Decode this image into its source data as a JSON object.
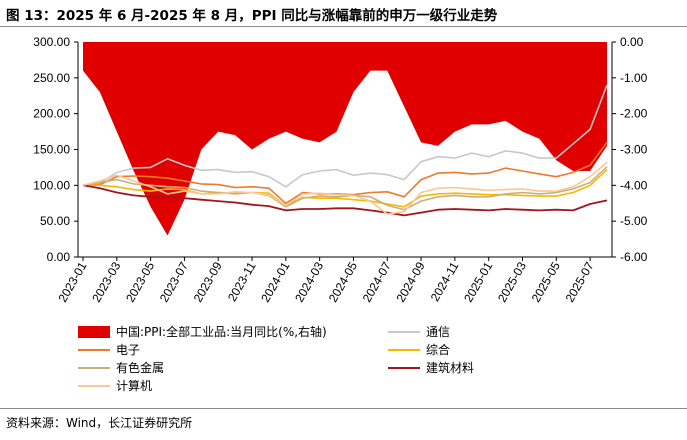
{
  "figure": {
    "title": "图 13：2025 年 6 月-2025 年 8 月，PPI 同比与涨幅靠前的申万一级行业走势",
    "source": "资料来源：Wind，长江证券研究所"
  },
  "chart_data": {
    "type": "line",
    "x": [
      "2023-01",
      "2023-02",
      "2023-03",
      "2023-04",
      "2023-05",
      "2023-06",
      "2023-07",
      "2023-08",
      "2023-09",
      "2023-10",
      "2023-11",
      "2023-12",
      "2024-01",
      "2024-02",
      "2024-03",
      "2024-04",
      "2024-05",
      "2024-06",
      "2024-07",
      "2024-08",
      "2024-09",
      "2024-10",
      "2024-11",
      "2024-12",
      "2025-01",
      "2025-02",
      "2025-03",
      "2025-04",
      "2025-05",
      "2025-06",
      "2025-07",
      "2025-08"
    ],
    "x_tick_labels": [
      "2023-01",
      "2023-03",
      "2023-05",
      "2023-07",
      "2023-09",
      "2023-11",
      "2024-01",
      "2024-03",
      "2024-05",
      "2024-07",
      "2024-09",
      "2024-11",
      "2025-01",
      "2025-03",
      "2025-05",
      "2025-07"
    ],
    "left_axis": {
      "ylim": [
        0,
        300
      ],
      "ticks": [
        "0.00",
        "50.00",
        "100.00",
        "150.00",
        "200.00",
        "250.00",
        "300.00"
      ]
    },
    "right_axis": {
      "ylim": [
        -6,
        0
      ],
      "ticks": [
        "0.00",
        "-1.00",
        "-2.00",
        "-3.00",
        "-4.00",
        "-5.00",
        "-6.00"
      ]
    },
    "area_series": {
      "name": "中国:PPI:全部工业品:当月同比(%,右轴)",
      "color": "#e00000",
      "axis": "right",
      "values": [
        -0.8,
        -1.4,
        -2.5,
        -3.6,
        -4.6,
        -5.4,
        -4.4,
        -3.0,
        -2.5,
        -2.6,
        -3.0,
        -2.7,
        -2.5,
        -2.7,
        -2.8,
        -2.5,
        -1.4,
        -0.8,
        -0.8,
        -1.8,
        -2.8,
        -2.9,
        -2.5,
        -2.3,
        -2.3,
        -2.2,
        -2.5,
        -2.7,
        -3.3,
        -3.6,
        -3.6,
        -2.9
      ]
    },
    "series": [
      {
        "name": "通信",
        "color": "#c8c8c8",
        "width": 1.6,
        "values": [
          100,
          103,
          118,
          124,
          125,
          137,
          128,
          121,
          122,
          118,
          119,
          112,
          98,
          115,
          120,
          122,
          114,
          117,
          115,
          108,
          133,
          140,
          138,
          145,
          140,
          148,
          145,
          138,
          138,
          158,
          178,
          240
        ]
      },
      {
        "name": "电子",
        "color": "#f07a2a",
        "width": 1.6,
        "values": [
          100,
          101,
          112,
          113,
          112,
          110,
          106,
          102,
          101,
          97,
          98,
          96,
          75,
          90,
          88,
          88,
          87,
          90,
          91,
          84,
          108,
          117,
          118,
          116,
          117,
          124,
          120,
          116,
          112,
          118,
          128,
          160
        ]
      },
      {
        "name": "综合",
        "color": "#f5b800",
        "width": 1.6,
        "values": [
          100,
          100,
          98,
          94,
          92,
          95,
          94,
          88,
          90,
          89,
          90,
          89,
          72,
          83,
          82,
          82,
          80,
          78,
          74,
          70,
          85,
          88,
          89,
          88,
          87,
          87,
          86,
          85,
          85,
          90,
          100,
          122
        ]
      },
      {
        "name": "有色金属",
        "color": "#c9b07a",
        "width": 1.6,
        "values": [
          100,
          104,
          108,
          102,
          100,
          98,
          97,
          92,
          90,
          88,
          90,
          86,
          70,
          82,
          85,
          84,
          86,
          84,
          72,
          66,
          78,
          84,
          86,
          84,
          84,
          88,
          90,
          88,
          90,
          95,
          104,
          126
        ]
      },
      {
        "name": "建筑材料",
        "color": "#a3141b",
        "width": 1.8,
        "values": [
          100,
          96,
          90,
          86,
          84,
          84,
          82,
          80,
          78,
          76,
          73,
          71,
          65,
          67,
          67,
          68,
          68,
          65,
          62,
          58,
          62,
          66,
          67,
          66,
          65,
          67,
          66,
          65,
          66,
          65,
          74,
          79
        ]
      },
      {
        "name": "计算机",
        "color": "#f9c896",
        "width": 1.6,
        "values": [
          100,
          106,
          114,
          106,
          98,
          88,
          92,
          88,
          88,
          91,
          90,
          87,
          72,
          88,
          89,
          87,
          86,
          78,
          60,
          63,
          90,
          96,
          97,
          95,
          93,
          94,
          95,
          92,
          92,
          98,
          112,
          132
        ]
      }
    ]
  }
}
